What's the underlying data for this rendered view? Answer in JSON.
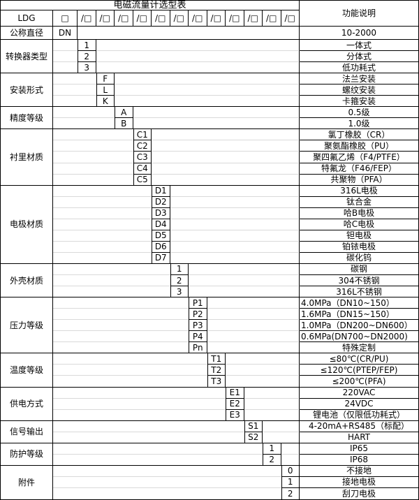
{
  "title": "电磁流量计选型表",
  "function_header": "功能说明",
  "model_code": {
    "prefix": "LDG",
    "base_box": "□",
    "slot_boxes": [
      "/□",
      "/□",
      "/□",
      "/□",
      "/□",
      "/□",
      "/□",
      "/□",
      "/□",
      "/□",
      "/□",
      "/□"
    ]
  },
  "colors": {
    "border": "#000000",
    "grid_line": "#d9d9d9",
    "background": "#ffffff",
    "text": "#000000"
  },
  "sections": [
    {
      "label": "公称直径",
      "code_col": 1,
      "options": [
        {
          "code": "DN",
          "desc": "10-2000"
        }
      ]
    },
    {
      "label": "转换器类型",
      "code_col": 2,
      "options": [
        {
          "code": "1",
          "desc": "一体式"
        },
        {
          "code": "2",
          "desc": "分体式"
        },
        {
          "code": "3",
          "desc": "低功耗式"
        }
      ]
    },
    {
      "label": "安装形式",
      "code_col": 3,
      "options": [
        {
          "code": "F",
          "desc": "法兰安装"
        },
        {
          "code": "L",
          "desc": "螺纹安装"
        },
        {
          "code": "K",
          "desc": "卡箍安装"
        }
      ]
    },
    {
      "label": "精度等级",
      "code_col": 4,
      "options": [
        {
          "code": "A",
          "desc": "0.5级"
        },
        {
          "code": "B",
          "desc": "1.0级"
        }
      ]
    },
    {
      "label": "衬里材质",
      "code_col": 5,
      "options": [
        {
          "code": "C1",
          "desc": "氯丁橡胶（CR）"
        },
        {
          "code": "C2",
          "desc": "聚氨酯橡胶（PU）"
        },
        {
          "code": "C3",
          "desc": "聚四氟乙烯（F4/PTFE）"
        },
        {
          "code": "C4",
          "desc": "特氟龙（F46/FEP）"
        },
        {
          "code": "C5",
          "desc": "共聚物（PFA）"
        }
      ]
    },
    {
      "label": "电极材质",
      "code_col": 6,
      "options": [
        {
          "code": "D1",
          "desc": "316L电极"
        },
        {
          "code": "D2",
          "desc": "钛合金"
        },
        {
          "code": "D3",
          "desc": "哈B电极"
        },
        {
          "code": "D4",
          "desc": "哈C电极"
        },
        {
          "code": "D5",
          "desc": "钽电极"
        },
        {
          "code": "D6",
          "desc": "铂铱电极"
        },
        {
          "code": "D7",
          "desc": "碳化钨"
        }
      ]
    },
    {
      "label": "外壳材质",
      "code_col": 7,
      "options": [
        {
          "code": "1",
          "desc": "碳钢"
        },
        {
          "code": "2",
          "desc": "304不锈钢"
        },
        {
          "code": "3",
          "desc": "316L不锈钢"
        }
      ]
    },
    {
      "label": "压力等级",
      "code_col": 8,
      "options": [
        {
          "code": "P1",
          "desc": "4.0MPa（DN10~150）",
          "align": "left"
        },
        {
          "code": "P2",
          "desc": "1.6MPa（DN15~150）",
          "align": "left"
        },
        {
          "code": "P3",
          "desc": "1.0MPa（DN200~DN600）",
          "align": "left"
        },
        {
          "code": "P4",
          "desc": "0.6MPa(DN700~DN2000)",
          "align": "left"
        },
        {
          "code": "Pn",
          "desc": "特殊定制"
        }
      ]
    },
    {
      "label": "温度等级",
      "code_col": 9,
      "options": [
        {
          "code": "T1",
          "desc": "≤80℃(CR/PU)"
        },
        {
          "code": "T2",
          "desc": "≤120℃(PTEP/FEP)"
        },
        {
          "code": "T3",
          "desc": "≤200℃(PFA)"
        }
      ]
    },
    {
      "label": "供电方式",
      "code_col": 10,
      "options": [
        {
          "code": "E1",
          "desc": "220VAC"
        },
        {
          "code": "E2",
          "desc": "24VDC"
        },
        {
          "code": "E3",
          "desc": "锂电池（仅限低功耗式）"
        }
      ]
    },
    {
      "label": "信号输出",
      "code_col": 11,
      "options": [
        {
          "code": "S1",
          "desc": "4-20mA+RS485（标配）"
        },
        {
          "code": "S2",
          "desc": "HART"
        }
      ]
    },
    {
      "label": "防护等级",
      "code_col": 12,
      "options": [
        {
          "code": "1",
          "desc": "IP65"
        },
        {
          "code": "2",
          "desc": "IP68"
        }
      ]
    },
    {
      "label": "附件",
      "code_col": 13,
      "options": [
        {
          "code": "0",
          "desc": "不接地"
        },
        {
          "code": "1",
          "desc": "接地电极"
        },
        {
          "code": "2",
          "desc": "刮刀电极"
        }
      ]
    }
  ]
}
